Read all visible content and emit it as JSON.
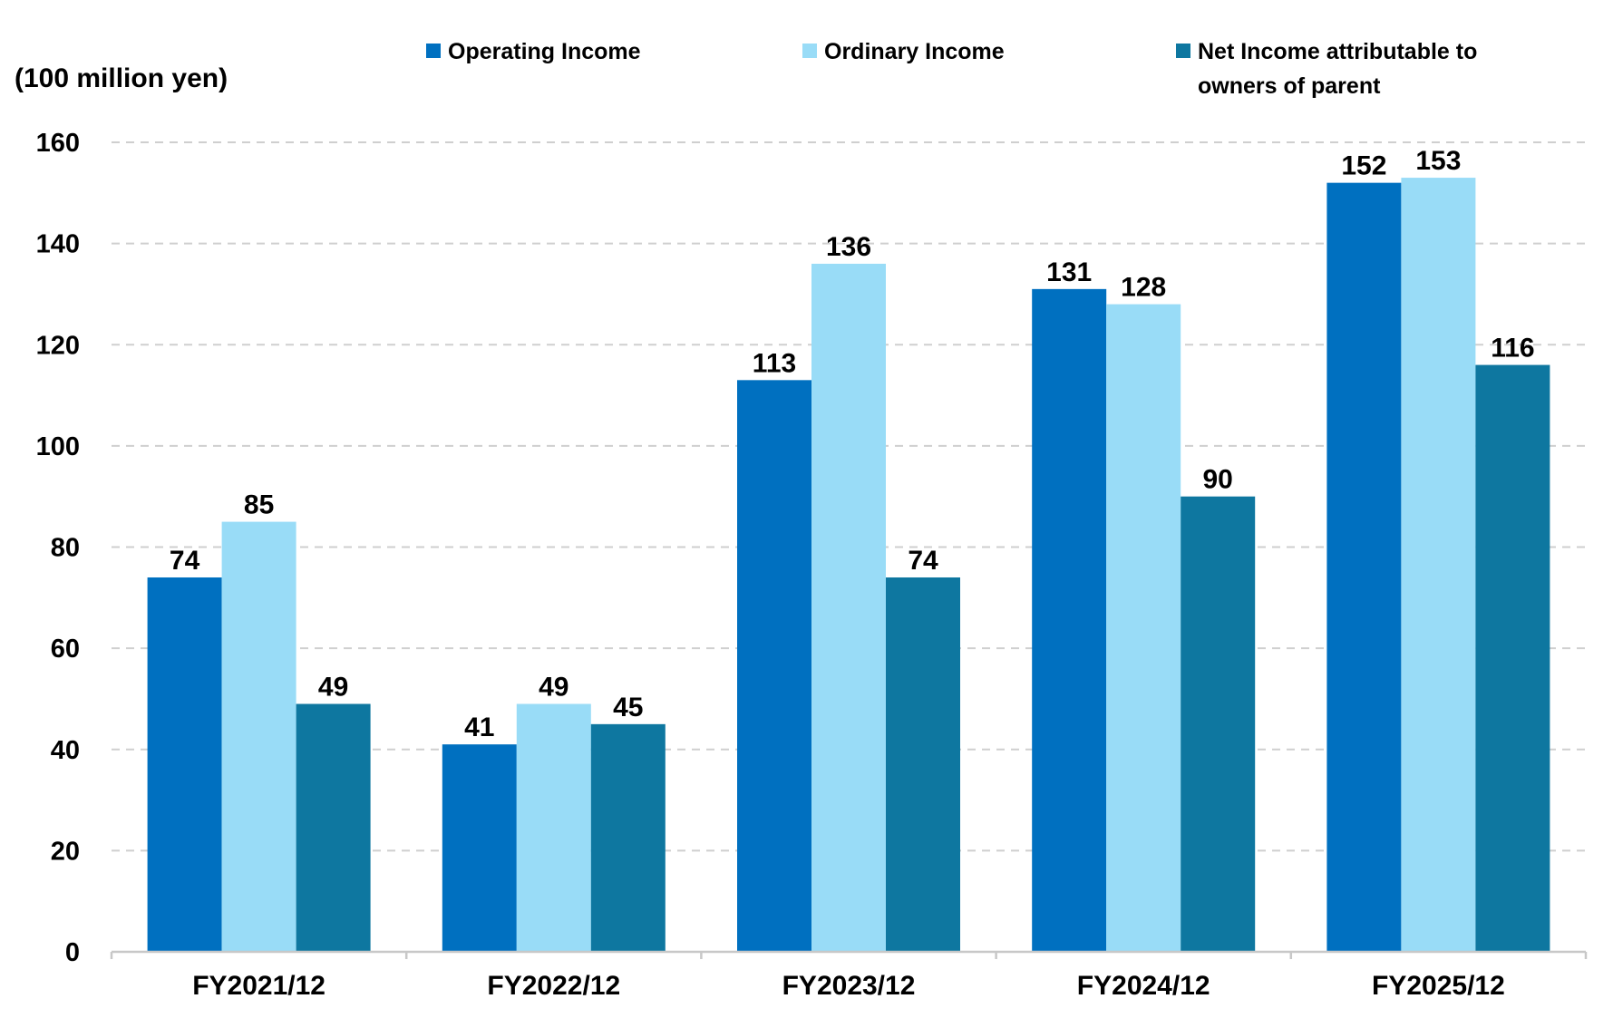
{
  "chart_data": {
    "type": "bar",
    "title": "",
    "xlabel": "",
    "ylabel": "(100 million yen)",
    "ylim": [
      0,
      160
    ],
    "yticks": [
      0,
      20,
      40,
      60,
      80,
      100,
      120,
      140,
      160
    ],
    "grid": true,
    "legend_position": "top",
    "categories": [
      "FY2021/12",
      "FY2022/12",
      "FY2023/12",
      "FY2024/12",
      "FY2025/12"
    ],
    "series": [
      {
        "name": "Operating Income",
        "color": "#0070c0",
        "values": [
          74,
          41,
          113,
          131,
          152
        ]
      },
      {
        "name": "Ordinary Income",
        "color": "#99dcf7",
        "values": [
          85,
          49,
          136,
          128,
          153
        ]
      },
      {
        "name": "Net Income attributable to owners of parent",
        "name_lines": [
          "Net Income attributable to",
          "owners of parent"
        ],
        "color": "#0e77a0",
        "values": [
          49,
          45,
          74,
          90,
          116
        ]
      }
    ]
  }
}
